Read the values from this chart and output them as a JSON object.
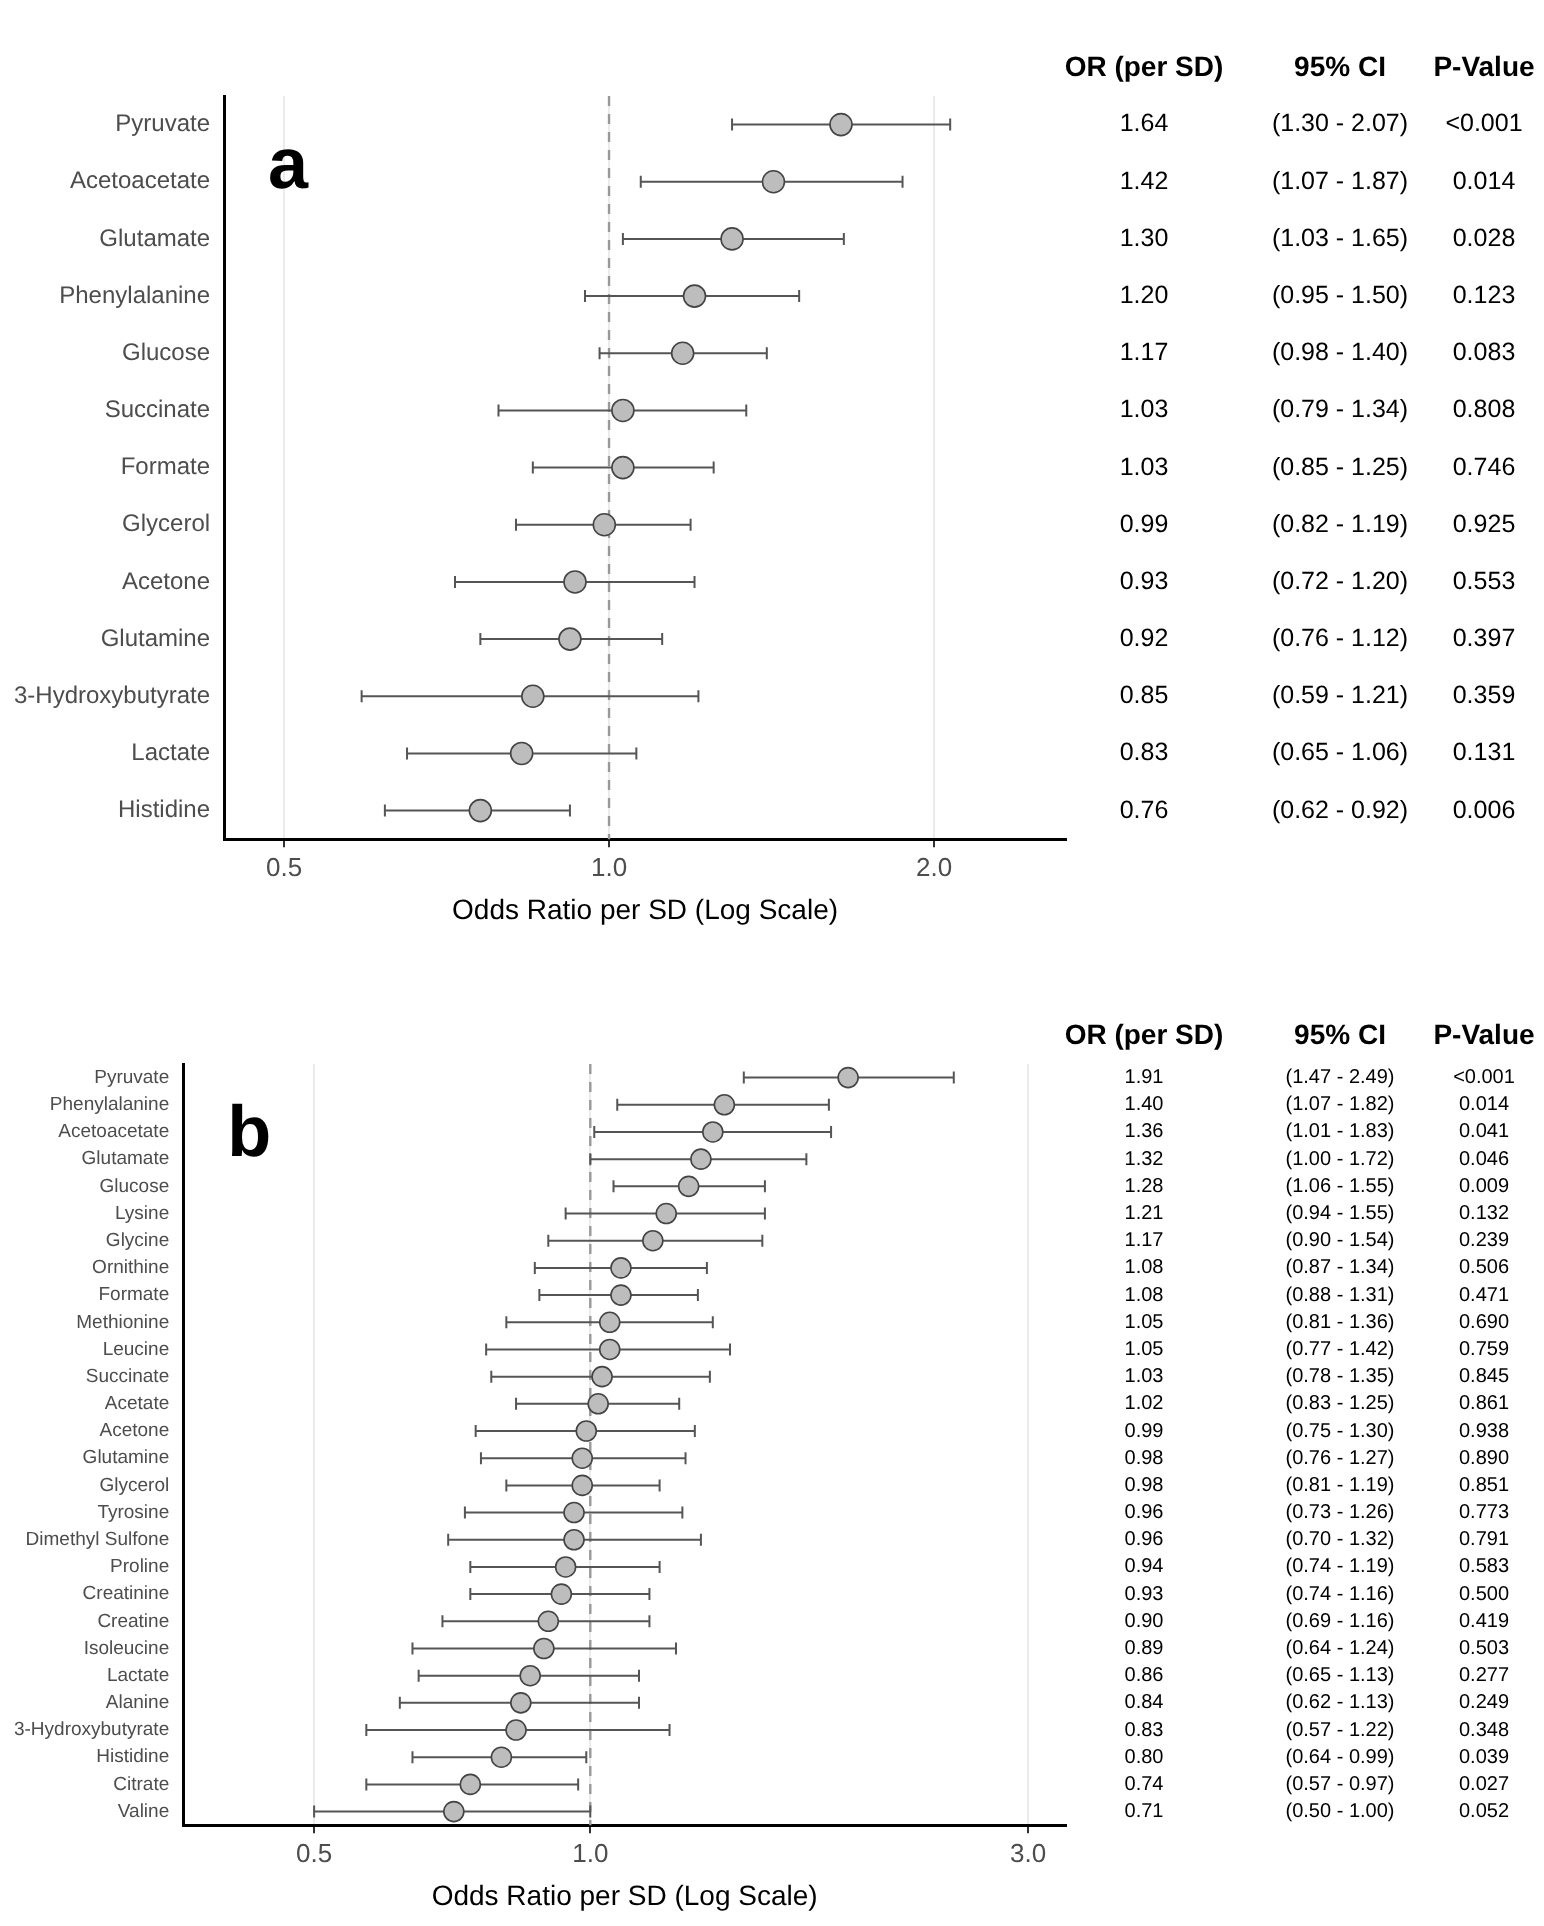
{
  "chart_data": [
    {
      "type": "scatter",
      "orientation": "horizontal",
      "xlabel": "Odds Ratio per SD (Log Scale)",
      "log": "x",
      "xlim": [
        0.44,
        2.65
      ],
      "xticks": [
        0.5,
        {
          "value": 1,
          "label": "1.0"
        },
        {
          "value": 2,
          "label": "2.0"
        }
      ],
      "grid": "x",
      "marker": "circle",
      "color": "#bdbdbd",
      "ref_lines": [
        {
          "axis": "x",
          "value": 1,
          "line_style": "dashed",
          "color": "#999999"
        }
      ],
      "categories": [
        "Pyruvate",
        "Acetoacetate",
        "Glutamate",
        "Phenylalanine",
        "Glucose",
        "Succinate",
        "Formate",
        "Glycerol",
        "Acetone",
        "Glutamine",
        "3-Hydroxybutyrate",
        "Lactate",
        "Histidine"
      ],
      "values": [
        1.64,
        1.42,
        1.3,
        1.2,
        1.17,
        1.03,
        1.03,
        0.99,
        0.93,
        0.92,
        0.85,
        0.83,
        0.76
      ],
      "errors": [
        [
          1.3,
          2.07
        ],
        [
          1.07,
          1.87
        ],
        [
          1.03,
          1.65
        ],
        [
          0.95,
          1.5
        ],
        [
          0.98,
          1.4
        ],
        [
          0.79,
          1.34
        ],
        [
          0.85,
          1.25
        ],
        [
          0.82,
          1.19
        ],
        [
          0.72,
          1.2
        ],
        [
          0.76,
          1.12
        ],
        [
          0.59,
          1.21
        ],
        [
          0.65,
          1.06
        ],
        [
          0.62,
          0.92
        ]
      ],
      "value_labels": [
        "1.64",
        "1.42",
        "1.30",
        "1.20",
        "1.17",
        "1.03",
        "1.03",
        "0.99",
        "0.93",
        "0.92",
        "0.85",
        "0.83",
        "0.76"
      ],
      "annotations": [
        "OR (per SD)",
        "95% CI",
        "P-Value",
        "a",
        "(1.30 - 2.07)",
        "<0.001",
        "(1.07 - 1.87)",
        "0.014",
        "(1.03 - 1.65)",
        "0.028",
        "(0.95 - 1.50)",
        "0.123",
        "(0.98 - 1.40)",
        "0.083",
        "(0.79 - 1.34)",
        "0.808",
        "(0.85 - 1.25)",
        "0.746",
        "(0.82 - 1.19)",
        "0.925",
        "(0.72 - 1.20)",
        "0.553",
        "(0.76 - 1.12)",
        "0.397",
        "(0.59 - 1.21)",
        "0.359",
        "(0.65 - 1.06)",
        "0.131",
        "(0.62 - 0.92)",
        "0.006"
      ]
    },
    {
      "type": "scatter",
      "orientation": "horizontal",
      "xlabel": "Odds Ratio per SD (Log Scale)",
      "log": "x",
      "xlim": [
        0.36,
        3.3
      ],
      "xticks": [
        0.5,
        {
          "value": 1,
          "label": "1.0"
        },
        {
          "value": 3,
          "label": "3.0"
        }
      ],
      "grid": "x",
      "marker": "circle",
      "color": "#bdbdbd",
      "ref_lines": [
        {
          "axis": "x",
          "value": 1,
          "line_style": "dashed",
          "color": "#999999"
        }
      ],
      "categories": [
        "Pyruvate",
        "Phenylalanine",
        "Acetoacetate",
        "Glutamate",
        "Glucose",
        "Lysine",
        "Glycine",
        "Ornithine",
        "Formate",
        "Methionine",
        "Leucine",
        "Succinate",
        "Acetate",
        "Acetone",
        "Glutamine",
        "Glycerol",
        "Tyrosine",
        "Dimethyl Sulfone",
        "Proline",
        "Creatinine",
        "Creatine",
        "Isoleucine",
        "Lactate",
        "Alanine",
        "3-Hydroxybutyrate",
        "Histidine",
        "Citrate",
        "Valine"
      ],
      "values": [
        1.91,
        1.4,
        1.36,
        1.32,
        1.28,
        1.21,
        1.17,
        1.08,
        1.08,
        1.05,
        1.05,
        1.03,
        1.02,
        0.99,
        0.98,
        0.98,
        0.96,
        0.96,
        0.94,
        0.93,
        0.9,
        0.89,
        0.86,
        0.84,
        0.83,
        0.8,
        0.74,
        0.71
      ],
      "errors": [
        [
          1.47,
          2.49
        ],
        [
          1.07,
          1.82
        ],
        [
          1.01,
          1.83
        ],
        [
          1.0,
          1.72
        ],
        [
          1.06,
          1.55
        ],
        [
          0.94,
          1.55
        ],
        [
          0.9,
          1.54
        ],
        [
          0.87,
          1.34
        ],
        [
          0.88,
          1.31
        ],
        [
          0.81,
          1.36
        ],
        [
          0.77,
          1.42
        ],
        [
          0.78,
          1.35
        ],
        [
          0.83,
          1.25
        ],
        [
          0.75,
          1.3
        ],
        [
          0.76,
          1.27
        ],
        [
          0.81,
          1.19
        ],
        [
          0.73,
          1.26
        ],
        [
          0.7,
          1.32
        ],
        [
          0.74,
          1.19
        ],
        [
          0.74,
          1.16
        ],
        [
          0.69,
          1.16
        ],
        [
          0.64,
          1.24
        ],
        [
          0.65,
          1.13
        ],
        [
          0.62,
          1.13
        ],
        [
          0.57,
          1.22
        ],
        [
          0.64,
          0.99
        ],
        [
          0.57,
          0.97
        ],
        [
          0.5,
          1.0
        ]
      ],
      "value_labels": [
        "1.91",
        "1.40",
        "1.36",
        "1.32",
        "1.28",
        "1.21",
        "1.17",
        "1.08",
        "1.08",
        "1.05",
        "1.05",
        "1.03",
        "1.02",
        "0.99",
        "0.98",
        "0.98",
        "0.96",
        "0.96",
        "0.94",
        "0.93",
        "0.90",
        "0.89",
        "0.86",
        "0.84",
        "0.83",
        "0.80",
        "0.74",
        "0.71"
      ],
      "annotations": [
        "OR (per SD)",
        "95% CI",
        "P-Value",
        "b",
        "(1.47 - 2.49)",
        "<0.001",
        "(1.07 - 1.82)",
        "0.014",
        "(1.01 - 1.83)",
        "0.041",
        "(1.00 - 1.72)",
        "0.046",
        "(1.06 - 1.55)",
        "0.009",
        "(0.94 - 1.55)",
        "0.132",
        "(0.90 - 1.54)",
        "0.239",
        "(0.87 - 1.34)",
        "0.506",
        "(0.88 - 1.31)",
        "0.471",
        "(0.81 - 1.36)",
        "0.690",
        "(0.77 - 1.42)",
        "0.759",
        "(0.78 - 1.35)",
        "0.845",
        "(0.83 - 1.25)",
        "0.861",
        "(0.75 - 1.30)",
        "0.938",
        "(0.76 - 1.27)",
        "0.890",
        "(0.81 - 1.19)",
        "0.851",
        "(0.73 - 1.26)",
        "0.773",
        "(0.70 - 1.32)",
        "0.791",
        "(0.74 - 1.19)",
        "0.583",
        "(0.74 - 1.16)",
        "0.500",
        "(0.69 - 1.16)",
        "0.419",
        "(0.64 - 1.24)",
        "0.503",
        "(0.65 - 1.13)",
        "0.277",
        "(0.62 - 1.13)",
        "0.249",
        "(0.57 - 1.22)",
        "0.348",
        "(0.64 - 0.99)",
        "0.039",
        "(0.57 - 0.97)",
        "0.027",
        "(0.50 - 1.00)",
        "0.052"
      ]
    }
  ]
}
